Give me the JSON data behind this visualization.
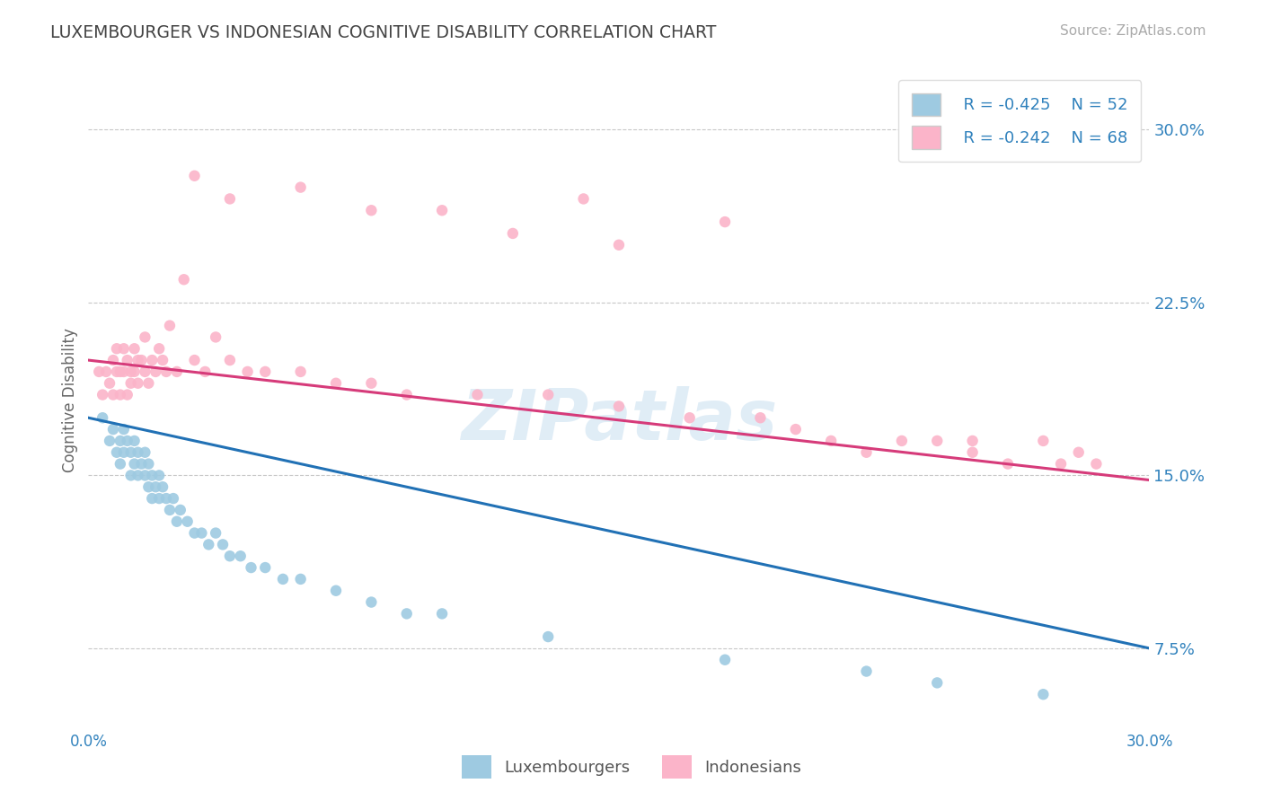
{
  "title": "LUXEMBOURGER VS INDONESIAN COGNITIVE DISABILITY CORRELATION CHART",
  "source": "Source: ZipAtlas.com",
  "ylabel": "Cognitive Disability",
  "xlim": [
    0.0,
    0.3
  ],
  "ylim": [
    0.04,
    0.325
  ],
  "yticks": [
    0.075,
    0.15,
    0.225,
    0.3
  ],
  "ytick_labels": [
    "7.5%",
    "15.0%",
    "22.5%",
    "30.0%"
  ],
  "xticks": [
    0.0,
    0.05,
    0.1,
    0.15,
    0.2,
    0.25,
    0.3
  ],
  "xtick_labels": [
    "0.0%",
    "",
    "",
    "",
    "",
    "",
    "30.0%"
  ],
  "legend_r1": "R = -0.425",
  "legend_n1": "N = 52",
  "legend_r2": "R = -0.242",
  "legend_n2": "N = 68",
  "legend_label1": "Luxembourgers",
  "legend_label2": "Indonesians",
  "color_blue": "#9ecae1",
  "color_pink": "#fbb4c9",
  "color_blue_line": "#2171b5",
  "color_pink_line": "#d63b7a",
  "color_text_blue": "#3182bd",
  "color_grid": "#c8c8c8",
  "lux_x": [
    0.004,
    0.006,
    0.007,
    0.008,
    0.009,
    0.009,
    0.01,
    0.01,
    0.011,
    0.012,
    0.012,
    0.013,
    0.013,
    0.014,
    0.014,
    0.015,
    0.016,
    0.016,
    0.017,
    0.017,
    0.018,
    0.018,
    0.019,
    0.02,
    0.02,
    0.021,
    0.022,
    0.023,
    0.024,
    0.025,
    0.026,
    0.028,
    0.03,
    0.032,
    0.034,
    0.036,
    0.038,
    0.04,
    0.043,
    0.046,
    0.05,
    0.055,
    0.06,
    0.07,
    0.08,
    0.09,
    0.1,
    0.13,
    0.18,
    0.22,
    0.24,
    0.27
  ],
  "lux_y": [
    0.175,
    0.165,
    0.17,
    0.16,
    0.165,
    0.155,
    0.17,
    0.16,
    0.165,
    0.15,
    0.16,
    0.155,
    0.165,
    0.15,
    0.16,
    0.155,
    0.15,
    0.16,
    0.145,
    0.155,
    0.15,
    0.14,
    0.145,
    0.15,
    0.14,
    0.145,
    0.14,
    0.135,
    0.14,
    0.13,
    0.135,
    0.13,
    0.125,
    0.125,
    0.12,
    0.125,
    0.12,
    0.115,
    0.115,
    0.11,
    0.11,
    0.105,
    0.105,
    0.1,
    0.095,
    0.09,
    0.09,
    0.08,
    0.07,
    0.065,
    0.06,
    0.055
  ],
  "ind_x": [
    0.003,
    0.004,
    0.005,
    0.006,
    0.007,
    0.007,
    0.008,
    0.008,
    0.009,
    0.009,
    0.01,
    0.01,
    0.011,
    0.011,
    0.012,
    0.012,
    0.013,
    0.013,
    0.014,
    0.014,
    0.015,
    0.016,
    0.016,
    0.017,
    0.018,
    0.019,
    0.02,
    0.021,
    0.022,
    0.023,
    0.025,
    0.027,
    0.03,
    0.033,
    0.036,
    0.04,
    0.045,
    0.05,
    0.06,
    0.07,
    0.08,
    0.09,
    0.11,
    0.13,
    0.15,
    0.17,
    0.19,
    0.2,
    0.21,
    0.22,
    0.23,
    0.24,
    0.25,
    0.26,
    0.27,
    0.275,
    0.28,
    0.285,
    0.04,
    0.08,
    0.12,
    0.15,
    0.03,
    0.06,
    0.1,
    0.14,
    0.18,
    0.25
  ],
  "ind_y": [
    0.195,
    0.185,
    0.195,
    0.19,
    0.2,
    0.185,
    0.195,
    0.205,
    0.185,
    0.195,
    0.195,
    0.205,
    0.185,
    0.2,
    0.195,
    0.19,
    0.205,
    0.195,
    0.19,
    0.2,
    0.2,
    0.195,
    0.21,
    0.19,
    0.2,
    0.195,
    0.205,
    0.2,
    0.195,
    0.215,
    0.195,
    0.235,
    0.2,
    0.195,
    0.21,
    0.2,
    0.195,
    0.195,
    0.195,
    0.19,
    0.19,
    0.185,
    0.185,
    0.185,
    0.18,
    0.175,
    0.175,
    0.17,
    0.165,
    0.16,
    0.165,
    0.165,
    0.16,
    0.155,
    0.165,
    0.155,
    0.16,
    0.155,
    0.27,
    0.265,
    0.255,
    0.25,
    0.28,
    0.275,
    0.265,
    0.27,
    0.26,
    0.165
  ],
  "watermark": "ZIPatlas",
  "background_color": "#ffffff"
}
